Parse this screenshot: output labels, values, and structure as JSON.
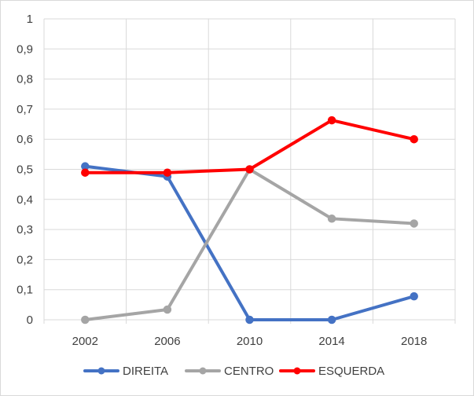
{
  "chart_data": {
    "type": "line",
    "title": "",
    "xlabel": "",
    "ylabel": "",
    "categories": [
      "2002",
      "2006",
      "2010",
      "2014",
      "2018"
    ],
    "ylim": [
      0,
      1
    ],
    "yticks": [
      "0",
      "0,1",
      "0,2",
      "0,3",
      "0,4",
      "0,5",
      "0,6",
      "0,7",
      "0,8",
      "0,9",
      "1"
    ],
    "grid": "vertical and horizontal",
    "legend": "bottom",
    "series": [
      {
        "name": "DIREITA",
        "color": "#4472c4",
        "values": [
          0.51,
          0.476,
          0.0,
          0.0,
          0.078
        ]
      },
      {
        "name": "CENTRO",
        "color": "#a5a5a5",
        "values": [
          0.0,
          0.034,
          0.5,
          0.336,
          0.32
        ]
      },
      {
        "name": "ESQUERDA",
        "color": "#ff0000",
        "values": [
          0.489,
          0.489,
          0.5,
          0.663,
          0.6
        ]
      }
    ]
  }
}
